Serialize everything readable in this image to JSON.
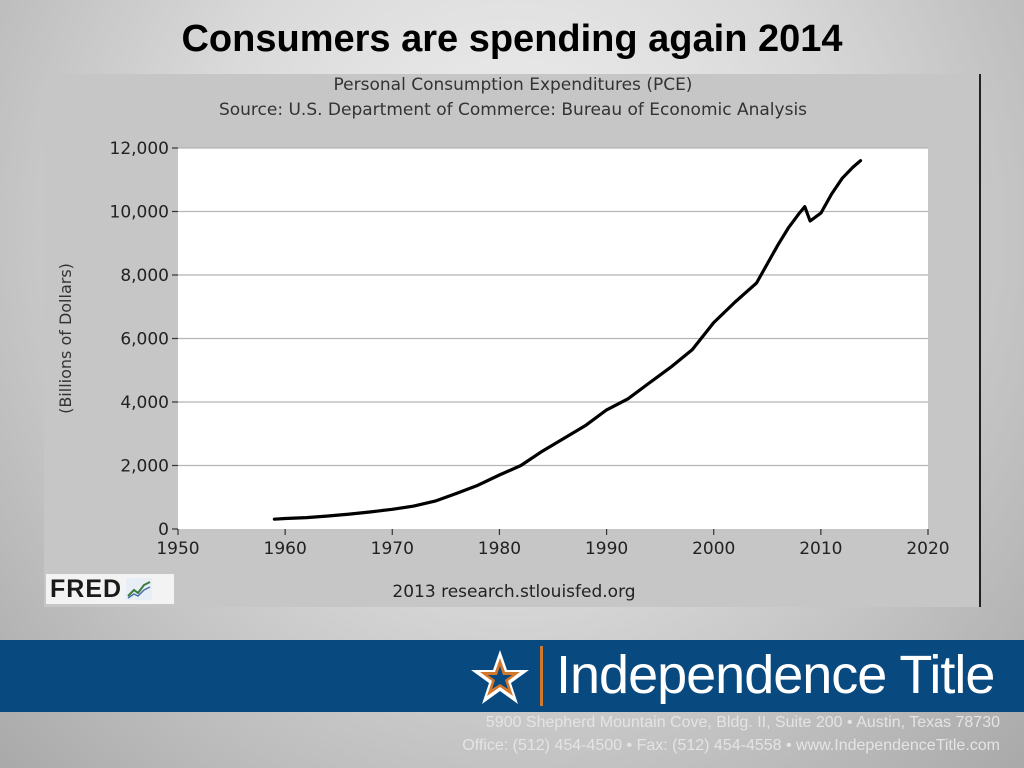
{
  "slide": {
    "title": "Consumers are spending again 2014"
  },
  "chart_data": {
    "type": "line",
    "title": "Personal Consumption Expenditures (PCE)",
    "subtitle": "Source: U.S. Department of Commerce: Bureau of Economic Analysis",
    "ylabel": "(Billions of Dollars)",
    "xlabel": "",
    "xlim": [
      1950,
      2020
    ],
    "ylim": [
      0,
      12000
    ],
    "x_ticks": [
      "1950",
      "1960",
      "1970",
      "1980",
      "1990",
      "2000",
      "2010",
      "2020"
    ],
    "y_ticks": [
      "0",
      "2,000",
      "4,000",
      "6,000",
      "8,000",
      "10,000",
      "12,000"
    ],
    "grid": true,
    "legend": "none",
    "line_color": "#000000",
    "credit": "2013 research.stlouisfed.org",
    "series": [
      {
        "x": [
          1959,
          1960,
          1962,
          1964,
          1966,
          1968,
          1970,
          1972,
          1974,
          1976,
          1978,
          1980,
          1982,
          1984,
          1986,
          1988,
          1990,
          1992,
          1994,
          1996,
          1998,
          2000,
          2002,
          2004,
          2006,
          2007,
          2008,
          2008.5,
          2009,
          2010,
          2011,
          2012,
          2013,
          2013.7
        ],
        "y": [
          310,
          330,
          360,
          410,
          470,
          540,
          620,
          720,
          880,
          1120,
          1380,
          1700,
          2000,
          2450,
          2850,
          3250,
          3750,
          4100,
          4600,
          5100,
          5650,
          6500,
          7150,
          7750,
          8950,
          9500,
          9950,
          10150,
          9700,
          9950,
          10550,
          11050,
          11400,
          11600
        ]
      }
    ]
  },
  "footer": {
    "company": "Independence Title",
    "address_line_1": "5900 Shepherd Mountain Cove, Bldg. II, Suite 200 • Austin, Texas 78730",
    "address_line_2": "Office: (512) 454-4500  •  Fax: (512) 454-4558  •  www.IndependenceTitle.com"
  },
  "logos": {
    "fred_text": "FRED"
  },
  "colors": {
    "banner": "#08497f",
    "accent": "#d2782c",
    "plot_background": "#ffffff",
    "panel_background": "#c6c6c6"
  }
}
